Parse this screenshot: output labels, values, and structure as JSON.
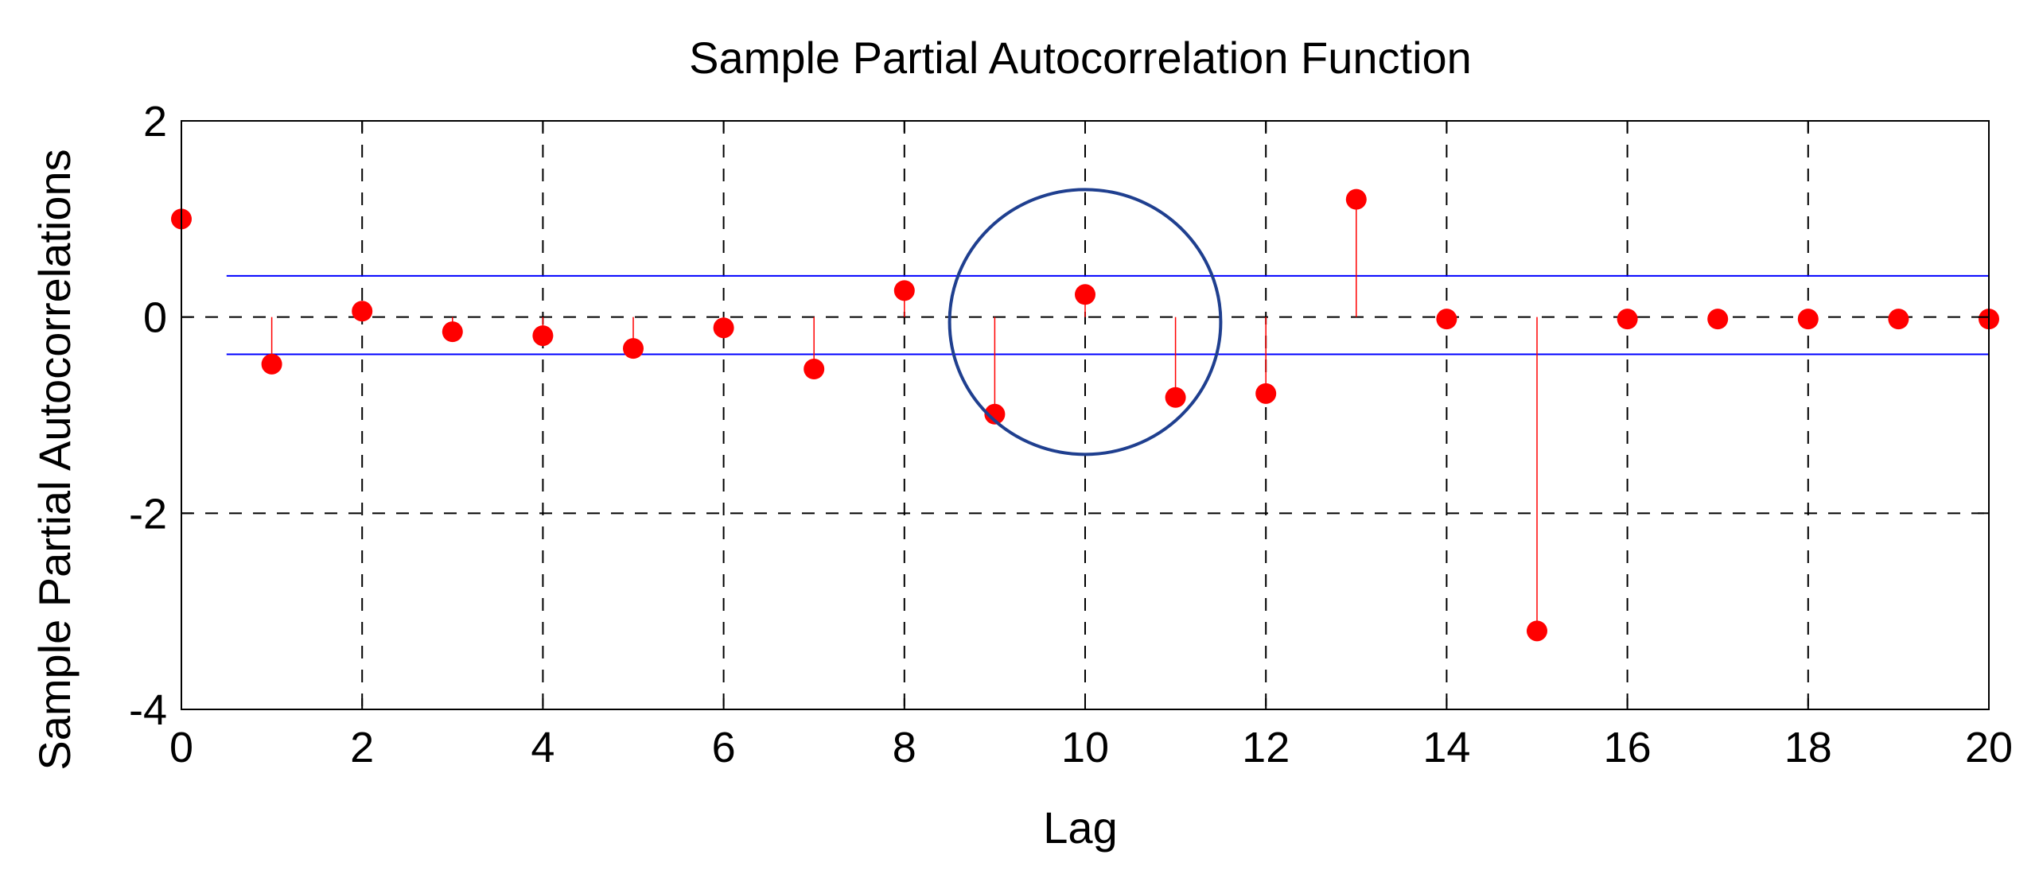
{
  "chart_data": {
    "type": "stem",
    "title": "Sample Partial Autocorrelation Function",
    "xlabel": "Lag",
    "ylabel": "Sample Partial Autocorrelations",
    "xlim": [
      0,
      20
    ],
    "ylim": [
      -4,
      2
    ],
    "xticks": [
      0,
      2,
      4,
      6,
      8,
      10,
      12,
      14,
      16,
      18,
      20
    ],
    "yticks": [
      -4,
      -2,
      0,
      2
    ],
    "grid": true,
    "series": [
      {
        "color": "#ff0000",
        "x": [
          0,
          1,
          2,
          3,
          4,
          5,
          6,
          7,
          8,
          9,
          10,
          11,
          12,
          13,
          14,
          15,
          16,
          17,
          18,
          19,
          20
        ],
        "y": [
          1.0,
          -0.48,
          0.06,
          -0.15,
          -0.19,
          -0.32,
          -0.11,
          -0.53,
          0.27,
          -0.99,
          0.23,
          -0.82,
          -0.78,
          1.2,
          -0.02,
          -3.2,
          -0.02,
          -0.02,
          -0.02,
          -0.02,
          -0.02
        ]
      }
    ],
    "confidence_bounds": {
      "upper": 0.42,
      "lower": -0.38,
      "x_start": 0.5,
      "x_end": 20,
      "color": "#0000ff"
    },
    "annotation": {
      "shape": "circle",
      "center": [
        10,
        -0.05
      ],
      "x_radius": 1.5,
      "y_radius": 1.35,
      "color": "#1f3f8f"
    }
  }
}
